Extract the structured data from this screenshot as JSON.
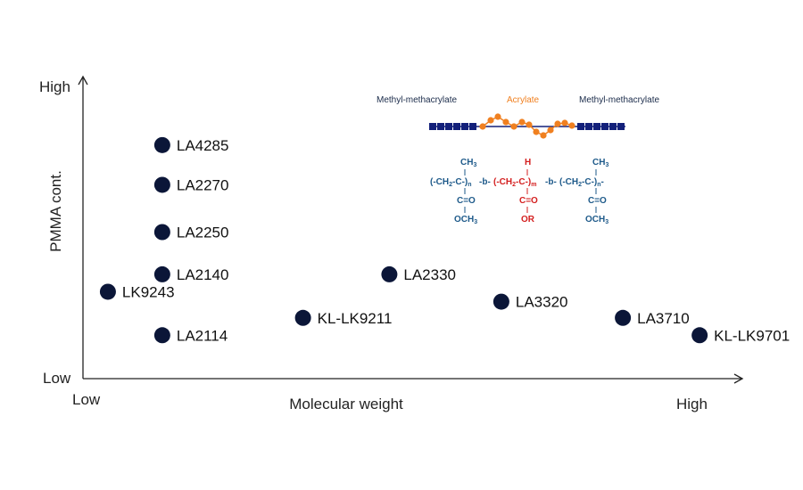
{
  "chart_data": {
    "type": "scatter",
    "xlabel": "Molecular weight",
    "ylabel": "PMMA cont.",
    "x_low_label": "Low",
    "x_high_label": "High",
    "y_low_label": "Low",
    "y_high_label": "High",
    "xlim": [
      0,
      10
    ],
    "ylim": [
      0,
      10
    ],
    "points": [
      {
        "label": "LA4285",
        "x": 1.1,
        "y": 8.5
      },
      {
        "label": "LA2270",
        "x": 1.1,
        "y": 6.9
      },
      {
        "label": "LA2250",
        "x": 1.1,
        "y": 5.0
      },
      {
        "label": "LA2140",
        "x": 1.1,
        "y": 3.3
      },
      {
        "label": "LK9243",
        "x": 0.25,
        "y": 2.6
      },
      {
        "label": "LA2114",
        "x": 1.1,
        "y": 0.85
      },
      {
        "label": "KL-LK9211",
        "x": 3.3,
        "y": 1.55
      },
      {
        "label": "LA2330",
        "x": 4.65,
        "y": 3.3
      },
      {
        "label": "LA3320",
        "x": 6.4,
        "y": 2.2
      },
      {
        "label": "LA3710",
        "x": 8.3,
        "y": 1.55
      },
      {
        "label": "KL-LK9701",
        "x": 9.5,
        "y": 0.85
      }
    ],
    "marker_color": "#0b1638"
  },
  "legend": {
    "left_label": "Methyl-methacrylate",
    "mid_label": "Acrylate",
    "right_label": "Methyl-methacrylate",
    "pmma_color": "#13207a",
    "acrylate_color": "#f08020"
  },
  "formula": {
    "mma_color": "#1e5a8a",
    "acrylate_color": "#d42020",
    "top_left": "CH3",
    "top_mid": "H",
    "top_right": "CH3",
    "chain_1": "(-CH2-C-)n",
    "link_1": "-b-",
    "chain_2": "(-CH2-C-)m",
    "link_2": "-b-",
    "chain_3": "(-CH2-C-)n-",
    "carbonyl_left": "C=O",
    "carbonyl_mid": "C=O",
    "carbonyl_right": "C=O",
    "ester_left": "OCH3",
    "ester_mid": "OR",
    "ester_right": "OCH3"
  }
}
